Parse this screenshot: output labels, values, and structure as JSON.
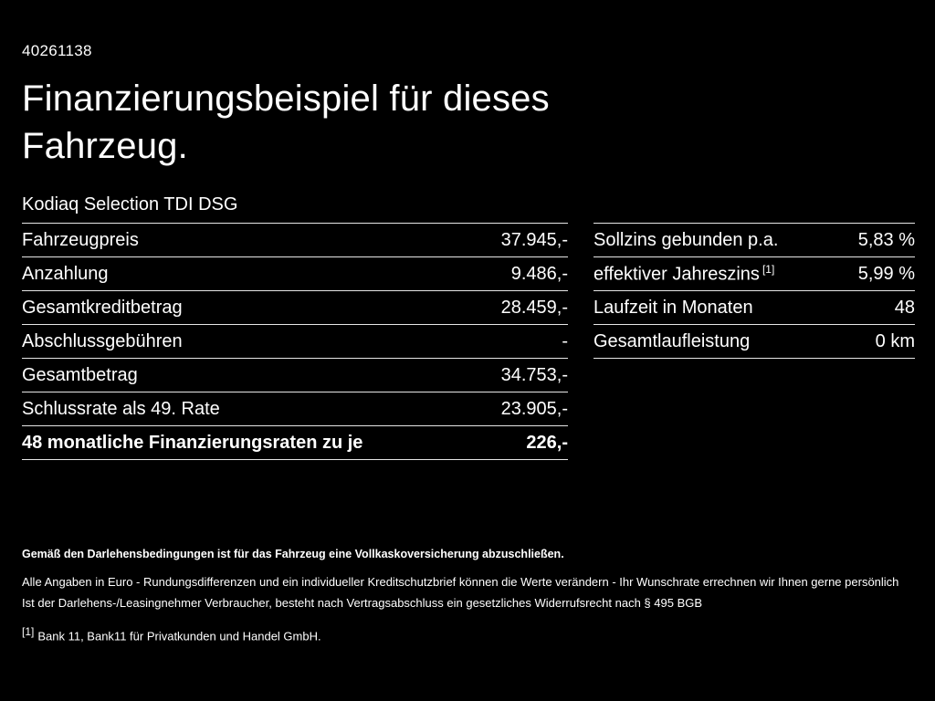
{
  "header": {
    "doc_id": "40261138",
    "title_line1": "Finanzierungsbeispiel für dieses",
    "title_line2": "Fahrzeug.",
    "subtitle": "Kodiaq Selection TDI DSG"
  },
  "left_table": {
    "rows": [
      {
        "label": "Fahrzeugpreis",
        "value": "37.945,-"
      },
      {
        "label": "Anzahlung",
        "value": "9.486,-"
      },
      {
        "label": "Gesamtkreditbetrag",
        "value": "28.459,-"
      },
      {
        "label": "Abschlussgebühren",
        "value": "-"
      },
      {
        "label": "Gesamtbetrag",
        "value": "34.753,-"
      },
      {
        "label": "Schlussrate als 49. Rate",
        "value": "23.905,-"
      },
      {
        "label": "48 monatliche Finanzierungsraten zu je",
        "value": "226,-"
      }
    ]
  },
  "right_table": {
    "rows": [
      {
        "label": "Sollzins gebunden p.a.",
        "value": "5,83 %"
      },
      {
        "label": "effektiver Jahreszins",
        "footnote_marker": "[1]",
        "value": "5,99 %"
      },
      {
        "label": "Laufzeit in Monaten",
        "value": "48"
      },
      {
        "label": "Gesamtlaufleistung",
        "value": "0 km"
      }
    ]
  },
  "footer": {
    "line1": "Gemäß den Darlehensbedingungen ist für das Fahrzeug eine Vollkaskoversicherung abzuschließen.",
    "line2": "Alle Angaben in Euro - Rundungsdifferenzen und ein individueller Kreditschutzbrief können die Werte verändern - Ihr Wunschrate errechnen wir Ihnen gerne persönlich",
    "line3": "Ist der Darlehens-/Leasingnehmer Verbraucher, besteht nach Vertragsabschluss ein gesetzliches Widerrufsrecht nach § 495 BGB",
    "footnote_marker": "[1]",
    "footnote_text": "Bank 11, Bank11 für Privatkunden und Handel GmbH."
  },
  "colors": {
    "background": "#000000",
    "text": "#ffffff",
    "divider": "#e6e6e6"
  }
}
